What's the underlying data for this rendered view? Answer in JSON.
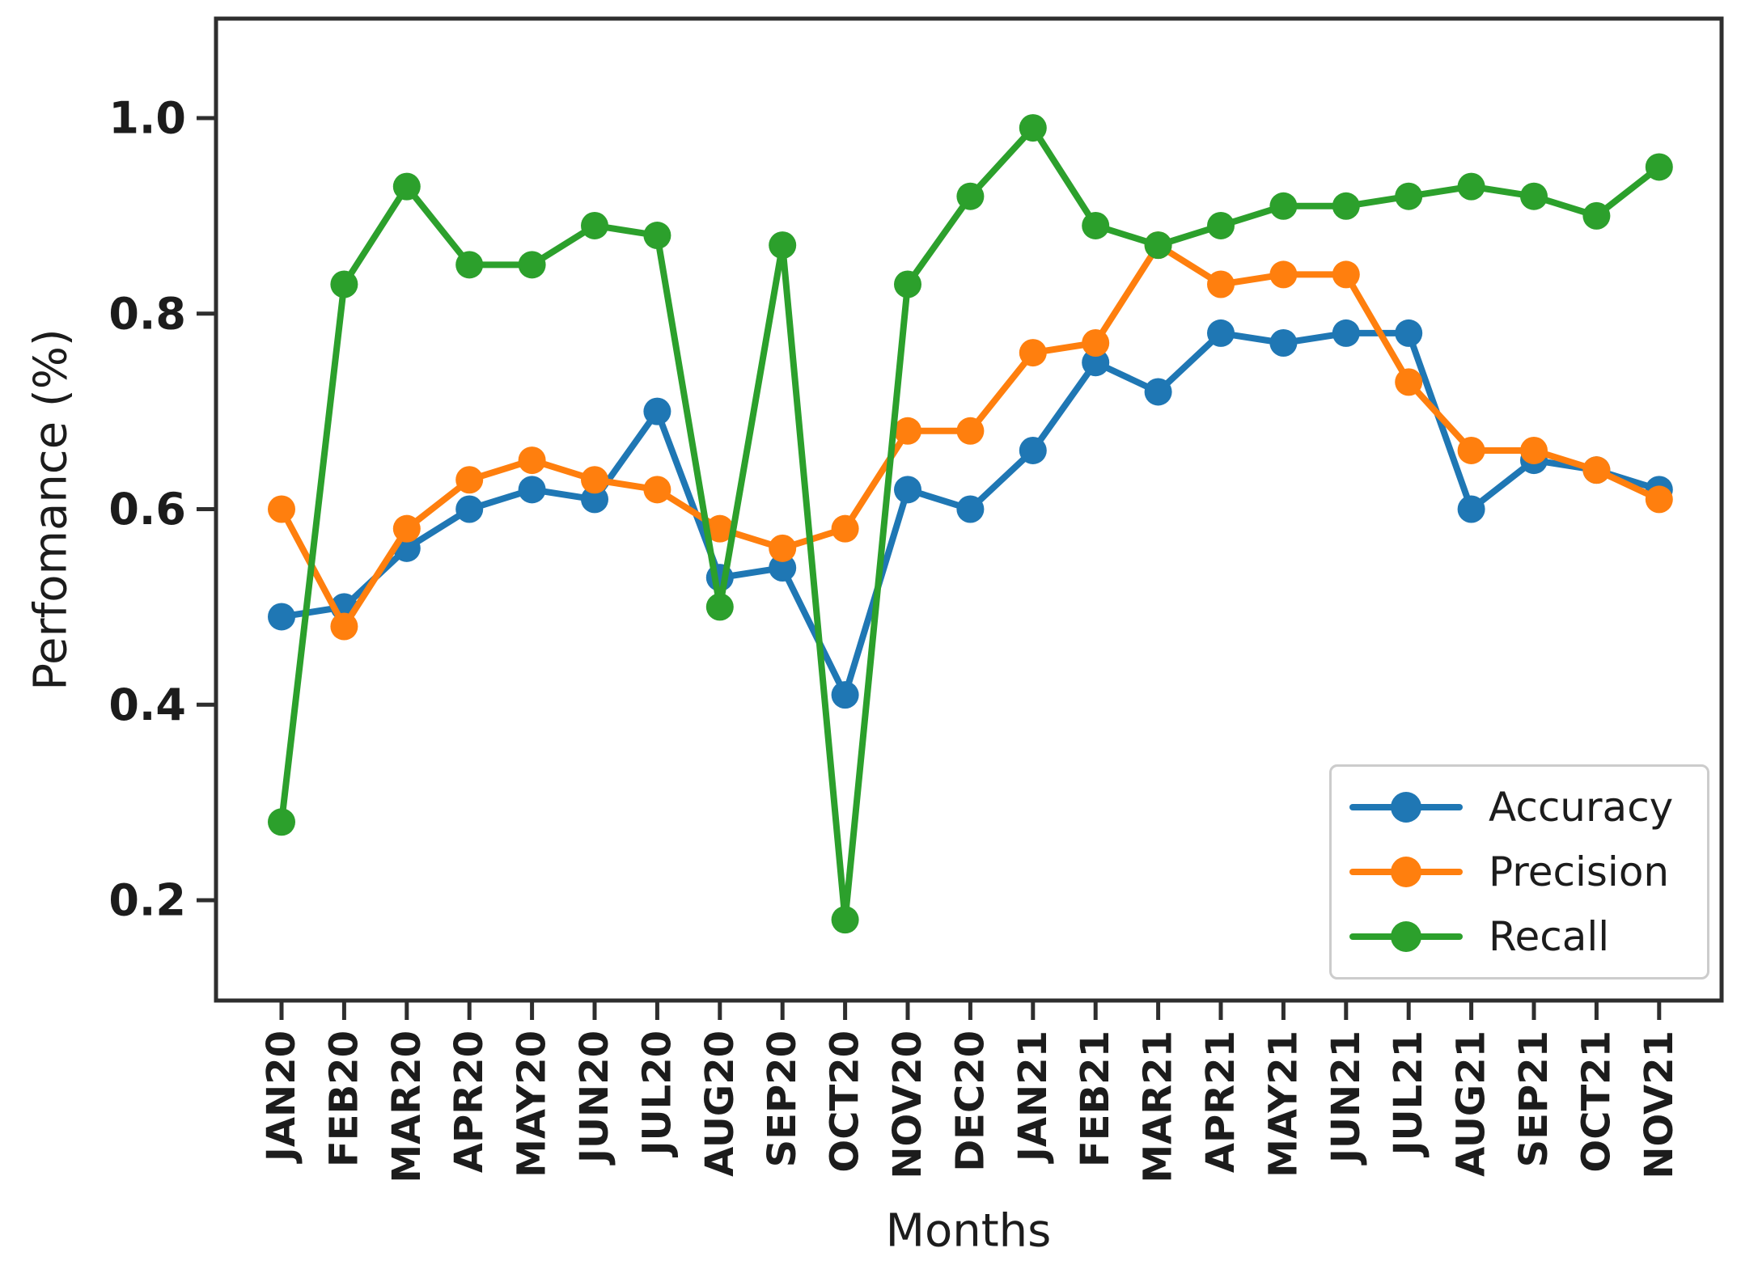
{
  "figure": {
    "background": "#ffffff",
    "axis_color": "#2e2e2e",
    "text_color": "#1c1c1c",
    "y_axis": {
      "label": "Perfomance (%)",
      "tick_values": [
        1.0,
        0.8,
        0.6,
        0.4,
        0.2
      ],
      "tick_labels": [
        "1.0",
        "0.8",
        "0.6",
        "0.4",
        "0.2"
      ]
    },
    "x_axis": {
      "label": "Months",
      "tick_rotation_deg": 90
    },
    "legend_position": "lower right"
  },
  "chart_data": {
    "type": "line",
    "title": "",
    "xlabel": "Months",
    "ylabel": "Perfomance (%)",
    "ylim": [
      0.1,
      1.1
    ],
    "grid": false,
    "marker": "o",
    "legend_position": "lower right",
    "categories": [
      "JAN20",
      "FEB20",
      "MAR20",
      "APR20",
      "MAY20",
      "JUN20",
      "JUL20",
      "AUG20",
      "SEP20",
      "OCT20",
      "NOV20",
      "DEC20",
      "JAN21",
      "FEB21",
      "MAR21",
      "APR21",
      "MAY21",
      "JUN21",
      "JUL21",
      "AUG21",
      "SEP21",
      "OCT21",
      "NOV21"
    ],
    "series": [
      {
        "name": "Accuracy",
        "color": "#1f77b4",
        "values": [
          0.49,
          0.5,
          0.56,
          0.6,
          0.62,
          0.61,
          0.7,
          0.53,
          0.54,
          0.41,
          0.62,
          0.6,
          0.66,
          0.75,
          0.72,
          0.78,
          0.77,
          0.78,
          0.78,
          0.6,
          0.65,
          0.64,
          0.62
        ]
      },
      {
        "name": "Precision",
        "color": "#ff7f0e",
        "values": [
          0.6,
          0.48,
          0.58,
          0.63,
          0.65,
          0.63,
          0.62,
          0.58,
          0.56,
          0.58,
          0.68,
          0.68,
          0.76,
          0.77,
          0.87,
          0.83,
          0.84,
          0.84,
          0.73,
          0.66,
          0.66,
          0.64,
          0.61
        ]
      },
      {
        "name": "Recall",
        "color": "#2ca02c",
        "values": [
          0.28,
          0.83,
          0.93,
          0.85,
          0.85,
          0.89,
          0.88,
          0.5,
          0.87,
          0.18,
          0.83,
          0.92,
          0.99,
          0.89,
          0.87,
          0.89,
          0.91,
          0.91,
          0.92,
          0.93,
          0.92,
          0.9,
          0.95
        ]
      }
    ]
  }
}
